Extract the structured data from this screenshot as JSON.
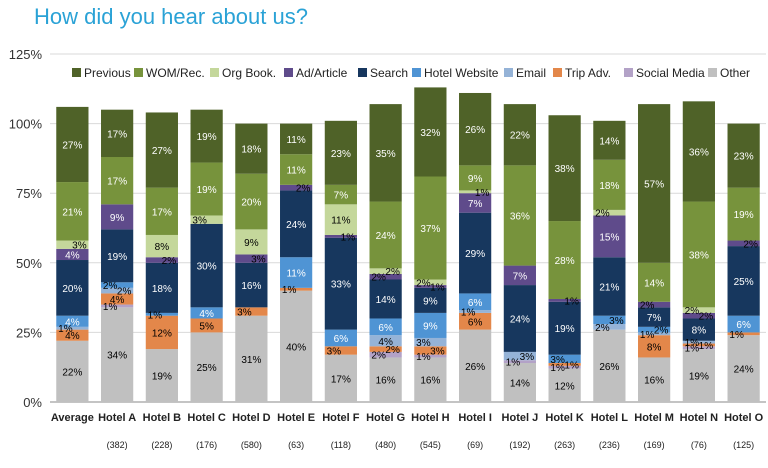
{
  "title": "How did you hear about us?",
  "chart_data": {
    "type": "bar",
    "stacked": true,
    "ylim": [
      0,
      125
    ],
    "yticks": [
      "0%",
      "25%",
      "50%",
      "75%",
      "100%",
      "125%"
    ],
    "legend_position": "top-right",
    "categories": [
      "Average",
      "Hotel A",
      "Hotel B",
      "Hotel C",
      "Hotel D",
      "Hotel E",
      "Hotel F",
      "Hotel G",
      "Hotel H",
      "Hotel I",
      "Hotel J",
      "Hotel K",
      "Hotel L",
      "Hotel M",
      "Hotel N",
      "Hotel O"
    ],
    "sample_sizes": [
      "",
      "(382)",
      "(228)",
      "(176)",
      "(580)",
      "(63)",
      "(118)",
      "(480)",
      "(545)",
      "(69)",
      "(192)",
      "(263)",
      "(236)",
      "(169)",
      "(76)",
      "(125)"
    ],
    "series": [
      {
        "name": "Other",
        "color": "#c0c0c0",
        "labelColor": "#000000",
        "values": [
          22,
          34,
          19,
          25,
          31,
          40,
          17,
          16,
          16,
          26,
          14,
          12,
          26,
          16,
          19,
          24
        ]
      },
      {
        "name": "Social Media",
        "color": "#b3a2c7",
        "labelColor": "#000000",
        "values": [
          0,
          1,
          0,
          0,
          0,
          0,
          0,
          2,
          1,
          0,
          1,
          1,
          0,
          0,
          1,
          0
        ]
      },
      {
        "name": "Trip Adv.",
        "color": "#e3874a",
        "labelColor": "#000000",
        "values": [
          4,
          4,
          12,
          5,
          3,
          1,
          3,
          2,
          3,
          6,
          0,
          1,
          0,
          8,
          1,
          1
        ]
      },
      {
        "name": "Email",
        "color": "#95b3d7",
        "labelColor": "#000000",
        "values": [
          1,
          2,
          0,
          0,
          0,
          0,
          0,
          4,
          3,
          1,
          3,
          0,
          2,
          1,
          1,
          0
        ]
      },
      {
        "name": "Hotel Website",
        "color": "#4f94d4",
        "labelColor": "#ffffff",
        "values": [
          4,
          2,
          1,
          4,
          0,
          11,
          6,
          6,
          9,
          6,
          0,
          3,
          3,
          2,
          0,
          6
        ]
      },
      {
        "name": "Search",
        "color": "#17375e",
        "labelColor": "#ffffff",
        "values": [
          20,
          19,
          18,
          30,
          16,
          24,
          33,
          14,
          9,
          29,
          24,
          19,
          21,
          7,
          8,
          25
        ]
      },
      {
        "name": "Ad/Article",
        "color": "#5f4b8b",
        "labelColor": "#ffffff",
        "values": [
          4,
          9,
          2,
          0,
          3,
          2,
          1,
          2,
          1,
          7,
          7,
          1,
          15,
          2,
          2,
          2
        ]
      },
      {
        "name": "Org Book.",
        "color": "#c4d79b",
        "labelColor": "#000000",
        "values": [
          3,
          0,
          8,
          3,
          9,
          0,
          11,
          2,
          2,
          1,
          0,
          0,
          2,
          0,
          2,
          0
        ]
      },
      {
        "name": "WOM/Rec.",
        "color": "#77933c",
        "labelColor": "#ffffff",
        "values": [
          21,
          17,
          17,
          19,
          20,
          11,
          7,
          24,
          37,
          9,
          36,
          28,
          18,
          14,
          38,
          19
        ]
      },
      {
        "name": "Previous",
        "color": "#4f6228",
        "labelColor": "#ffffff",
        "values": [
          27,
          17,
          27,
          19,
          18,
          11,
          23,
          35,
          32,
          26,
          22,
          38,
          14,
          57,
          36,
          23
        ]
      }
    ],
    "legend_order": [
      "Previous",
      "WOM/Rec.",
      "Org Book.",
      "Ad/Article",
      "Search",
      "Hotel Website",
      "Email",
      "Trip Adv.",
      "Social Media",
      "Other"
    ]
  }
}
